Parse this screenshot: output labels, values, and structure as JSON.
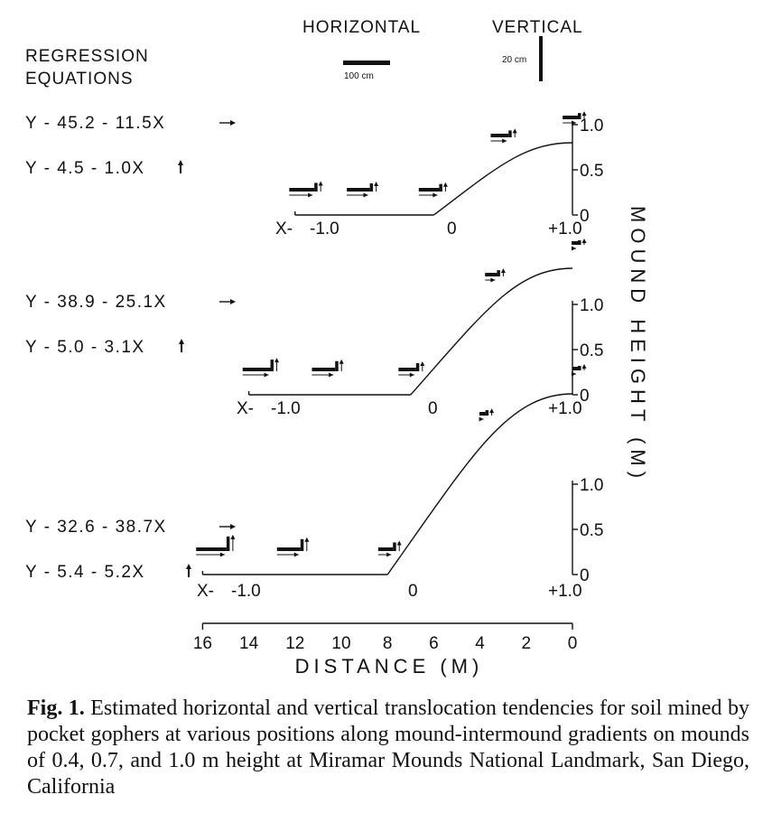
{
  "chart_data": {
    "type": "line",
    "legend": {
      "heading_line1": "REGRESSION",
      "heading_line2": "EQUATIONS",
      "horizontal_label": "HORIZONTAL",
      "vertical_label": "VERTICAL",
      "horizontal_scale_label": "100 cm",
      "vertical_scale_label": "20 cm"
    },
    "x_axis": {
      "label": "DISTANCE (M)",
      "ticks": [
        "16",
        "14",
        "12",
        "10",
        "8",
        "6",
        "4",
        "2",
        "0"
      ],
      "range": [
        16,
        0
      ]
    },
    "y_axis": {
      "label": "MOUND HEIGHT (M)",
      "ticks": [
        "0",
        "0.5",
        "1.0"
      ],
      "range": [
        0,
        1.0
      ]
    },
    "panels": [
      {
        "mound_height_m": 0.4,
        "radius_m": 6,
        "eq_horizontal": "Y - 45.2 - 11.5X",
        "eq_vertical": "Y - 4.5 - 1.0X",
        "x_labels": {
          "prefix": "X-",
          "start": "-1.0",
          "mid": "0",
          "end": "+1.0"
        },
        "y_ticks": [
          "1.0",
          "0.5",
          "0"
        ],
        "points": [
          {
            "x": -0.9,
            "horizontal_cm": 55.6,
            "vertical_cm": 5.4
          },
          {
            "x": -0.5,
            "horizontal_cm": 51.0,
            "vertical_cm": 5.0
          },
          {
            "x": 0.0,
            "horizontal_cm": 45.2,
            "vertical_cm": 4.5
          },
          {
            "x": 0.5,
            "horizontal_cm": 39.5,
            "vertical_cm": 4.0
          },
          {
            "x": 1.0,
            "horizontal_cm": 33.7,
            "vertical_cm": 3.5
          }
        ]
      },
      {
        "mound_height_m": 0.7,
        "radius_m": 7,
        "eq_horizontal": "Y - 38.9 - 25.1X",
        "eq_vertical": "Y - 5.0 - 3.1X",
        "x_labels": {
          "prefix": "X-",
          "start": "-1.0",
          "mid": "0",
          "end": "+1.0"
        },
        "y_ticks": [
          "1.0",
          "0.5",
          "0"
        ],
        "points": [
          {
            "x": -0.9,
            "horizontal_cm": 61.5,
            "vertical_cm": 7.8
          },
          {
            "x": -0.5,
            "horizontal_cm": 51.5,
            "vertical_cm": 6.6
          },
          {
            "x": 0.0,
            "horizontal_cm": 38.9,
            "vertical_cm": 5.0
          },
          {
            "x": 0.5,
            "horizontal_cm": 26.4,
            "vertical_cm": 3.5
          },
          {
            "x": 1.0,
            "horizontal_cm": 13.8,
            "vertical_cm": 1.9
          }
        ]
      },
      {
        "mound_height_m": 1.0,
        "radius_m": 8,
        "eq_horizontal": "Y - 32.6 - 38.7X",
        "eq_vertical": "Y - 5.4 - 5.2X",
        "x_labels": {
          "prefix": "X-",
          "start": "-1.0",
          "mid": "0",
          "end": "+1.0"
        },
        "y_ticks": [
          "1.0",
          "0.5",
          "0"
        ],
        "points": [
          {
            "x": -0.9,
            "horizontal_cm": 67.4,
            "vertical_cm": 10.1
          },
          {
            "x": -0.5,
            "horizontal_cm": 52.0,
            "vertical_cm": 8.0
          },
          {
            "x": 0.0,
            "horizontal_cm": 32.6,
            "vertical_cm": 5.4
          },
          {
            "x": 0.5,
            "horizontal_cm": 13.3,
            "vertical_cm": 2.8
          },
          {
            "x": 1.0,
            "horizontal_cm": -6.1,
            "vertical_cm": 0.2
          }
        ]
      }
    ]
  },
  "caption": {
    "label": "Fig. 1.",
    "text": " Estimated horizontal and vertical translocation tendencies for soil mined by pocket gophers at various positions along mound-intermound gradients on mounds of 0.4, 0.7, and 1.0 m height at Miramar Mounds National Landmark, San Diego, California"
  }
}
